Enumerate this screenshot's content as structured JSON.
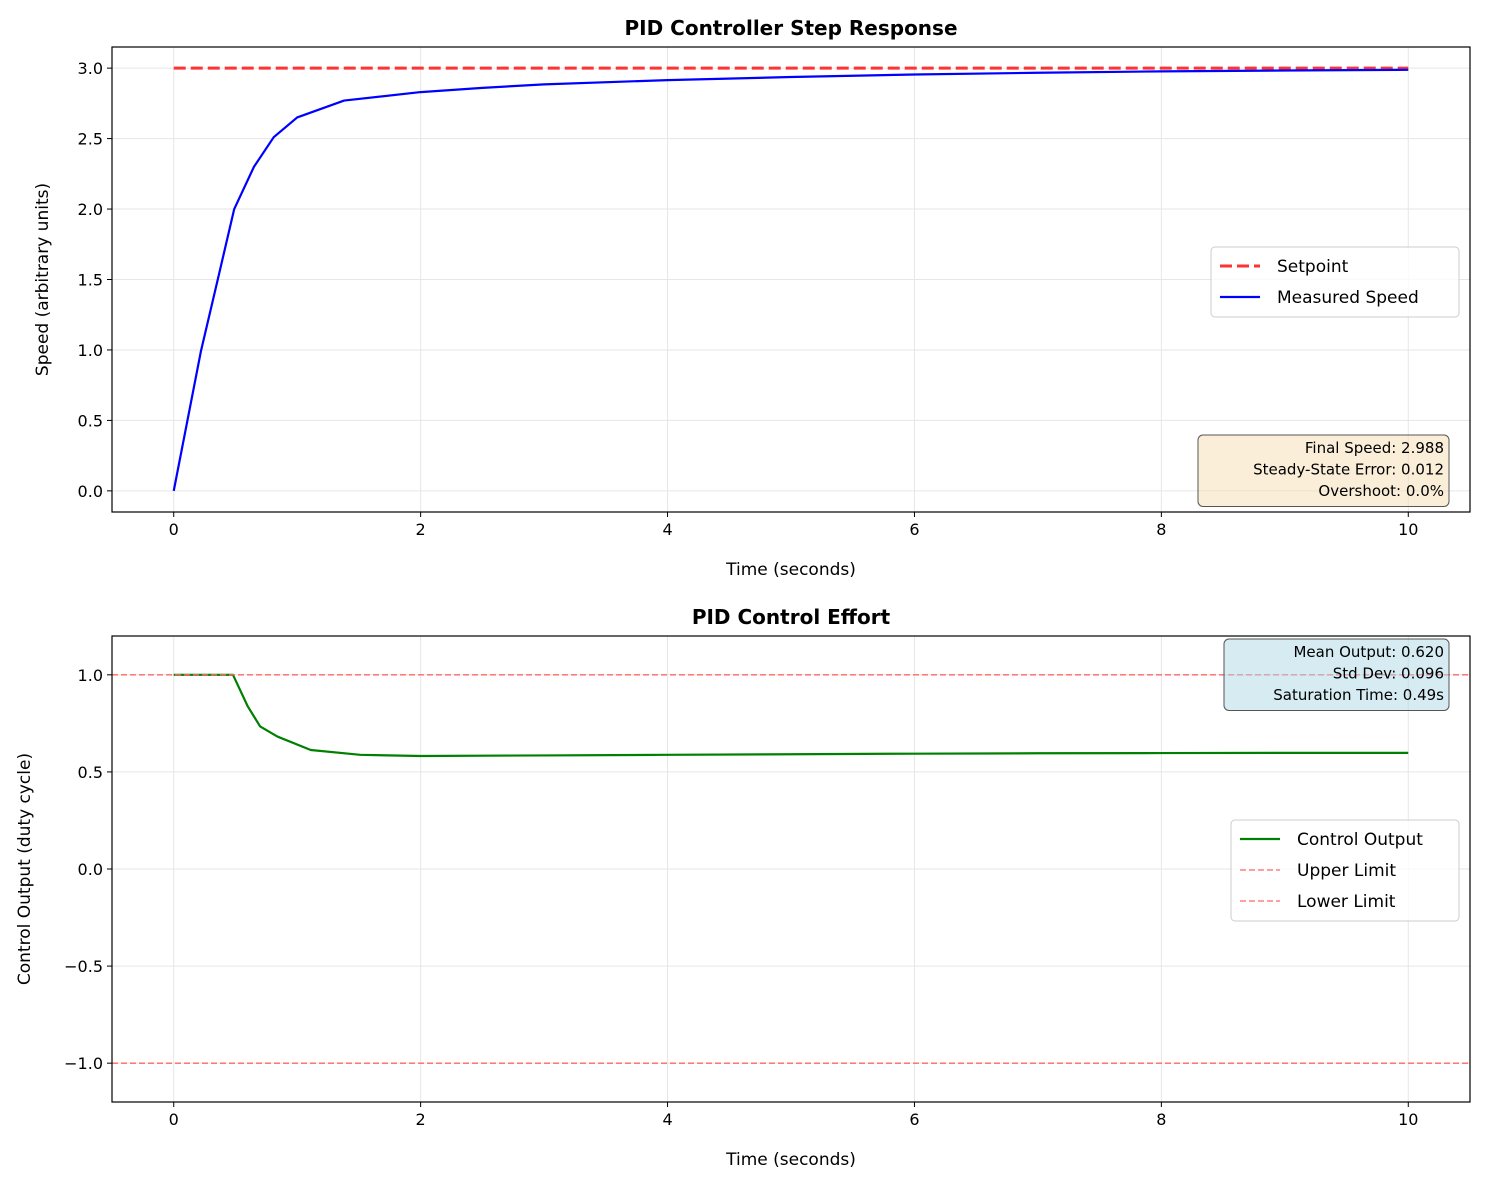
{
  "chart_data": [
    {
      "type": "line",
      "title": "PID Controller Step Response",
      "xlabel": "Time (seconds)",
      "ylabel": "Speed (arbitrary units)",
      "xlim": [
        -0.5,
        10.5
      ],
      "ylim": [
        -0.15,
        3.15
      ],
      "xticks": [
        0,
        2,
        4,
        6,
        8,
        10
      ],
      "xtick_labels": [
        "0",
        "2",
        "4",
        "6",
        "8",
        "10"
      ],
      "yticks": [
        0,
        0.5,
        1,
        1.5,
        2,
        2.5,
        3
      ],
      "ytick_labels": [
        "0.0",
        "0.5",
        "1.0",
        "1.5",
        "2.0",
        "2.5",
        "3.0"
      ],
      "grid": true,
      "legend_placement": "center-right",
      "series": [
        {
          "name": "Setpoint",
          "color": "#ff3333",
          "style": "dashed",
          "x": [
            0,
            10
          ],
          "y": [
            3.0,
            3.0
          ]
        },
        {
          "name": "Measured Speed",
          "color": "#0000ff",
          "style": "solid",
          "x": [
            0,
            0.22,
            0.37,
            0.49,
            0.65,
            0.81,
            1.0,
            1.38,
            2.0,
            2.5,
            3,
            4,
            5,
            6,
            7,
            8,
            9,
            10
          ],
          "y": [
            0,
            0.99,
            1.55,
            2.0,
            2.3,
            2.51,
            2.65,
            2.77,
            2.83,
            2.86,
            2.885,
            2.915,
            2.937,
            2.955,
            2.967,
            2.977,
            2.983,
            2.988
          ]
        }
      ],
      "annotation": [
        "Final Speed: 2.988",
        "Steady-State Error: 0.012",
        "Overshoot: 0.0%"
      ],
      "annotation_color": "#f5deb3"
    },
    {
      "type": "line",
      "title": "PID Control Effort",
      "xlabel": "Time (seconds)",
      "ylabel": "Control Output (duty cycle)",
      "xlim": [
        -0.5,
        10.5
      ],
      "ylim": [
        -1.2,
        1.2
      ],
      "xticks": [
        0,
        2,
        4,
        6,
        8,
        10
      ],
      "xtick_labels": [
        "0",
        "2",
        "4",
        "6",
        "8",
        "10"
      ],
      "yticks": [
        -1,
        -0.5,
        0,
        0.5,
        1
      ],
      "ytick_labels": [
        "−1.0",
        "−0.5",
        "0.0",
        "0.5",
        "1.0"
      ],
      "grid": true,
      "legend_placement": "center-right",
      "series": [
        {
          "name": "Control Output",
          "color": "#008000",
          "style": "solid",
          "x": [
            0,
            0.48,
            0.6,
            0.7,
            0.84,
            1.11,
            1.51,
            2.0,
            3,
            4,
            5,
            6,
            7,
            8,
            9,
            10
          ],
          "y": [
            1.0,
            1.0,
            0.837,
            0.734,
            0.682,
            0.613,
            0.588,
            0.582,
            0.585,
            0.588,
            0.591,
            0.594,
            0.596,
            0.597,
            0.598,
            0.598
          ]
        },
        {
          "name": "Upper Limit",
          "color": "#ff6666",
          "style": "dashed",
          "hline": 1.0
        },
        {
          "name": "Lower Limit",
          "color": "#ff6666",
          "style": "dashed",
          "hline": -1.0
        }
      ],
      "annotation": [
        "Mean Output: 0.620",
        "Std Dev: 0.096",
        "Saturation Time: 0.49s"
      ],
      "annotation_color": "#add8e6"
    }
  ]
}
